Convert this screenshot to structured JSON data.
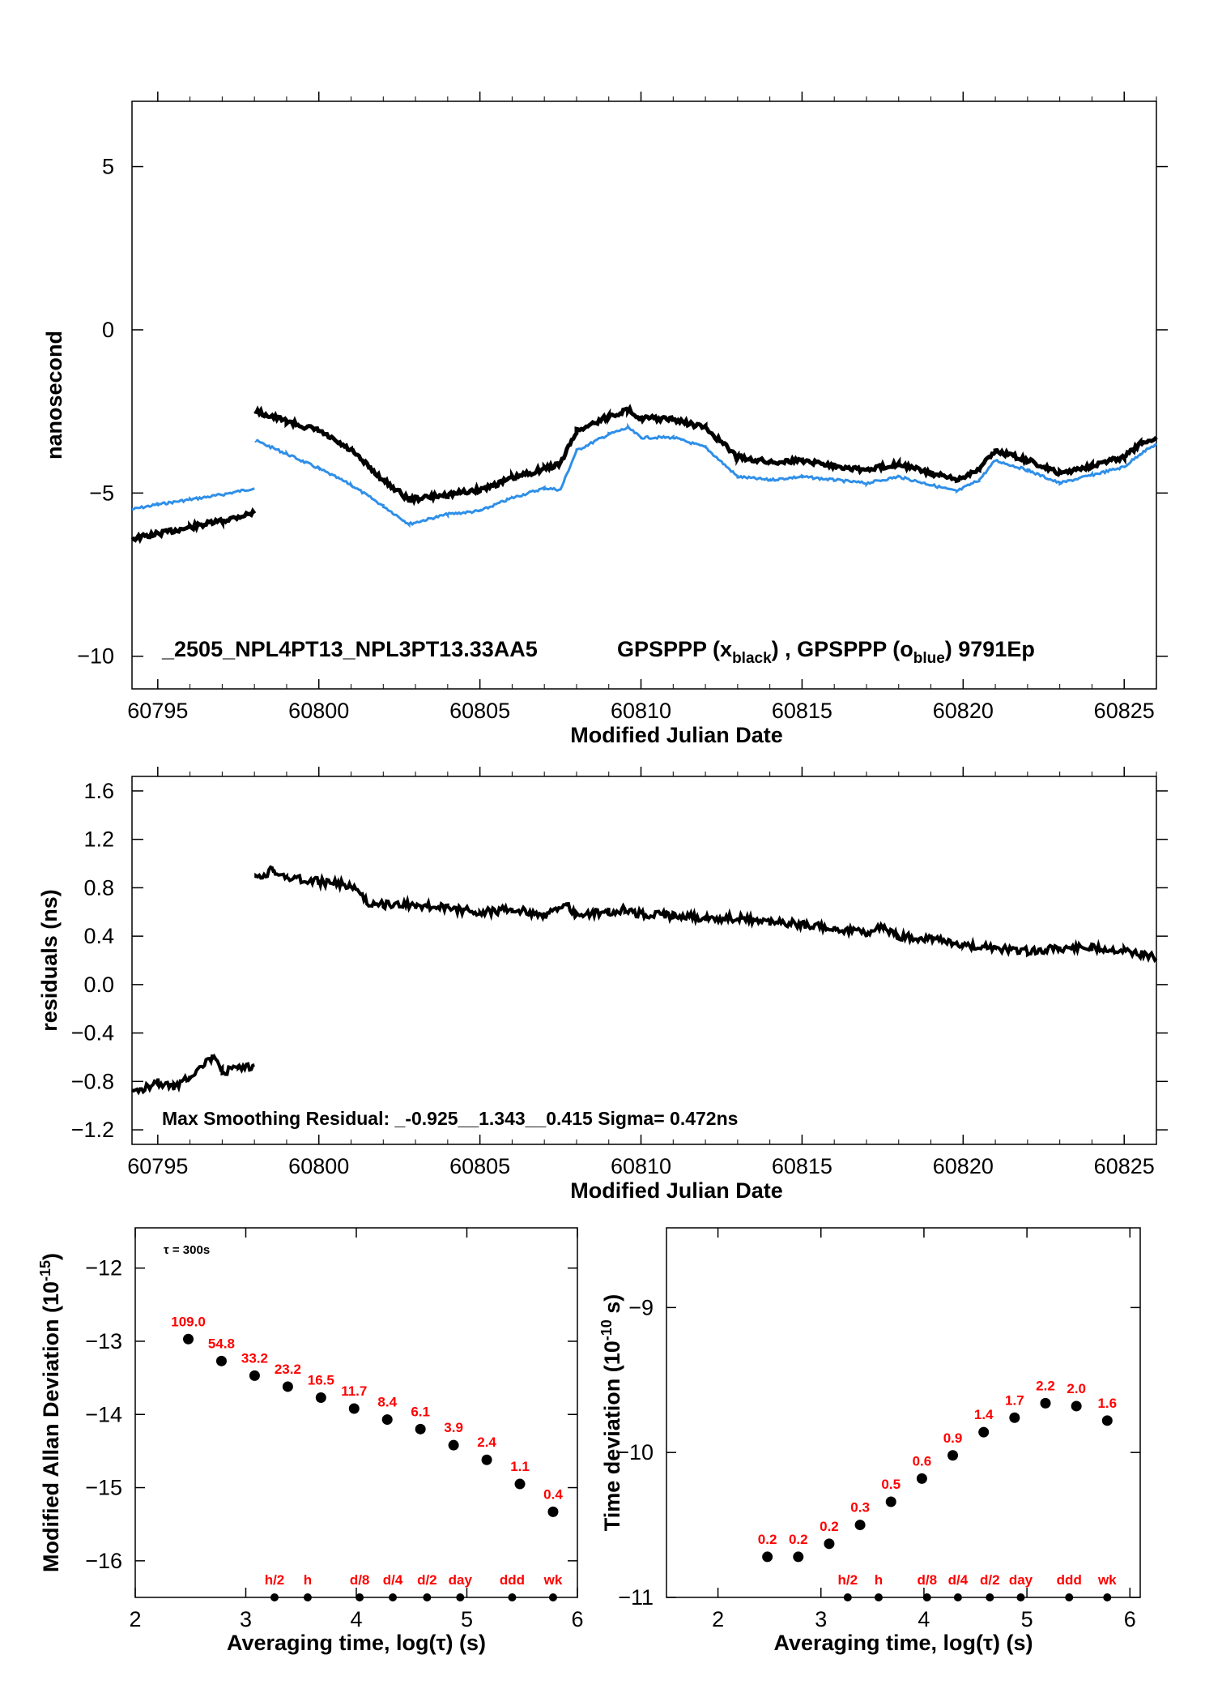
{
  "chart_data": [
    {
      "id": "phase",
      "type": "line",
      "xlabel": "Modified Julian Date",
      "ylabel": "nanosecond",
      "xlim": [
        60794.2,
        60826
      ],
      "ylim": [
        -11,
        7
      ],
      "xticks": [
        "60795",
        "60800",
        "60805",
        "60810",
        "60815",
        "60820",
        "60825"
      ],
      "yticks": [
        "5",
        "0",
        "−5",
        "−10"
      ],
      "annotation": "_2505_NPL4PT13_NPL3PT13.33AA5",
      "legend_text": {
        "a": "GPSPPP (x",
        "a_sub": "black",
        "sep": ") ,  ",
        "b": "GPSPPP (o",
        "b_sub": "blue",
        "c": ")  9791Ep"
      },
      "colors": {
        "black": "#000000",
        "blue": "#2f8fe8"
      },
      "series": [
        {
          "color": "#000000",
          "x": [
            60794.2,
            60795,
            60796,
            60797,
            60798,
            60798.05,
            60799,
            60800,
            60801,
            60802,
            60802.8,
            60804,
            60805,
            60806,
            60807,
            60807.5,
            60808,
            60809,
            60809.6,
            60810,
            60811,
            60812,
            60813,
            60814,
            60815,
            60816,
            60817,
            60818,
            60819,
            60819.8,
            60820.5,
            60821,
            60822,
            60823,
            60824,
            60825,
            60825.5,
            60826
          ],
          "y": [
            -6.4,
            -6.25,
            -6.05,
            -5.85,
            -5.6,
            -2.5,
            -2.8,
            -3.1,
            -3.7,
            -4.6,
            -5.2,
            -5.05,
            -4.9,
            -4.55,
            -4.25,
            -4.1,
            -3.1,
            -2.65,
            -2.45,
            -2.7,
            -2.75,
            -3.0,
            -3.9,
            -4.05,
            -4.0,
            -4.15,
            -4.3,
            -4.1,
            -4.4,
            -4.6,
            -4.25,
            -3.7,
            -4.0,
            -4.4,
            -4.15,
            -3.9,
            -3.5,
            -3.3
          ]
        },
        {
          "color": "#2f8fe8",
          "x": [
            60794.2,
            60795,
            60796,
            60797,
            60798,
            60798.05,
            60799,
            60800,
            60801,
            60802,
            60802.8,
            60804,
            60805,
            60806,
            60807,
            60807.5,
            60808,
            60809,
            60809.6,
            60810,
            60811,
            60812,
            60813,
            60814,
            60815,
            60816,
            60817,
            60818,
            60819,
            60819.8,
            60820.5,
            60821,
            60822,
            60823,
            60824,
            60825,
            60825.5,
            60826
          ],
          "y": [
            -5.5,
            -5.35,
            -5.2,
            -5.05,
            -4.85,
            -3.4,
            -3.8,
            -4.25,
            -4.75,
            -5.4,
            -5.95,
            -5.65,
            -5.55,
            -5.15,
            -4.85,
            -4.9,
            -3.7,
            -3.2,
            -3.0,
            -3.3,
            -3.3,
            -3.6,
            -4.5,
            -4.6,
            -4.5,
            -4.6,
            -4.7,
            -4.5,
            -4.75,
            -4.95,
            -4.6,
            -4.0,
            -4.3,
            -4.7,
            -4.45,
            -4.2,
            -3.8,
            -3.5
          ]
        }
      ]
    },
    {
      "id": "residuals",
      "type": "line",
      "xlabel": "Modified Julian Date",
      "ylabel": "residuals (ns)",
      "xlim": [
        60794.2,
        60826
      ],
      "ylim": [
        -1.32,
        1.72
      ],
      "xticks": [
        "60795",
        "60800",
        "60805",
        "60810",
        "60815",
        "60820",
        "60825"
      ],
      "yticks": [
        "1.6",
        "1.2",
        "0.8",
        "0.4",
        "0.0",
        "−0.4",
        "−0.8",
        "−1.2"
      ],
      "annotation": "Max Smoothing Residual: _-0.925__1.343__0.415  Sigma= 0.472ns",
      "series": [
        {
          "color": "#000000",
          "x": [
            60794.2,
            60795,
            60795.5,
            60796,
            60796.7,
            60797,
            60797.5,
            60798,
            60798.05,
            60798.6,
            60799,
            60800,
            60801,
            60801.5,
            60802,
            60803,
            60804,
            60805,
            60806,
            60807,
            60807.7,
            60808,
            60809,
            60809.5,
            60810,
            60811,
            60812,
            60813,
            60814,
            60815,
            60816,
            60817,
            60817.5,
            60818,
            60819,
            60820,
            60821,
            60822,
            60823,
            60824,
            60825,
            60826
          ],
          "y": [
            -0.9,
            -0.8,
            -0.85,
            -0.75,
            -0.6,
            -0.72,
            -0.7,
            -0.68,
            0.88,
            0.95,
            0.88,
            0.85,
            0.82,
            0.68,
            0.66,
            0.66,
            0.63,
            0.6,
            0.62,
            0.58,
            0.65,
            0.58,
            0.6,
            0.62,
            0.58,
            0.57,
            0.55,
            0.55,
            0.52,
            0.5,
            0.46,
            0.42,
            0.48,
            0.4,
            0.38,
            0.33,
            0.3,
            0.28,
            0.3,
            0.3,
            0.28,
            0.22
          ]
        }
      ]
    },
    {
      "id": "mdev",
      "type": "scatter",
      "xlabel": "Averaging time, log(τ) (s)",
      "ylabel": "Modified Allan Deviation (10",
      "ylabel_sup": "-15",
      "ylabel_end": ")",
      "xlim": [
        2,
        6
      ],
      "ylim": [
        -16.5,
        -11.45
      ],
      "xticks": [
        "2",
        "3",
        "4",
        "5",
        "6"
      ],
      "yticks": [
        "−12",
        "−13",
        "−14",
        "−15",
        "−16"
      ],
      "annotation": "τ = 300s",
      "x": [
        2.48,
        2.78,
        3.08,
        3.38,
        3.68,
        3.98,
        4.28,
        4.58,
        4.88,
        5.18,
        5.48,
        5.78
      ],
      "y": [
        -12.97,
        -13.27,
        -13.47,
        -13.62,
        -13.77,
        -13.92,
        -14.07,
        -14.2,
        -14.42,
        -14.62,
        -14.95,
        -15.33
      ],
      "labels": [
        "109.0",
        "54.8",
        "33.2",
        "23.2",
        "16.5",
        "11.7",
        "8.4",
        "6.1",
        "3.9",
        "2.4",
        "1.1",
        "0.4"
      ],
      "markers": [
        {
          "label": "h/2",
          "x": 3.26
        },
        {
          "label": "h",
          "x": 3.56
        },
        {
          "label": "d/8",
          "x": 4.03
        },
        {
          "label": "d/4",
          "x": 4.33
        },
        {
          "label": "d/2",
          "x": 4.64
        },
        {
          "label": "day",
          "x": 4.94
        },
        {
          "label": "ddd",
          "x": 5.41
        },
        {
          "label": "wk",
          "x": 5.78
        }
      ]
    },
    {
      "id": "tdev",
      "type": "scatter",
      "xlabel": "Averaging time, log(τ) (s)",
      "ylabel": "Time deviation (10",
      "ylabel_sup": "-10",
      "ylabel_end": " s)",
      "xlim": [
        1.5,
        6.1
      ],
      "ylim": [
        -11,
        -8.45
      ],
      "xticks": [
        "2",
        "3",
        "4",
        "5",
        "6"
      ],
      "yticks": [
        "−9",
        "−10",
        "−11"
      ],
      "x": [
        2.48,
        2.78,
        3.08,
        3.38,
        3.68,
        3.98,
        4.28,
        4.58,
        4.88,
        5.18,
        5.48,
        5.78
      ],
      "y": [
        -10.72,
        -10.72,
        -10.63,
        -10.5,
        -10.34,
        -10.18,
        -10.02,
        -9.86,
        -9.76,
        -9.66,
        -9.68,
        -9.78
      ],
      "labels": [
        "0.2",
        "0.2",
        "0.2",
        "0.3",
        "0.5",
        "0.6",
        "0.9",
        "1.4",
        "1.7",
        "2.2",
        "2.0",
        "1.6"
      ],
      "markers": [
        {
          "label": "h/2",
          "x": 3.26
        },
        {
          "label": "h",
          "x": 3.56
        },
        {
          "label": "d/8",
          "x": 4.03
        },
        {
          "label": "d/4",
          "x": 4.33
        },
        {
          "label": "d/2",
          "x": 4.64
        },
        {
          "label": "day",
          "x": 4.94
        },
        {
          "label": "ddd",
          "x": 5.41
        },
        {
          "label": "wk",
          "x": 5.78
        }
      ]
    }
  ]
}
